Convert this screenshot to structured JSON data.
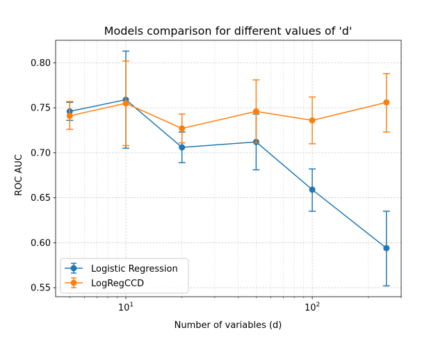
{
  "chart_data": {
    "type": "line",
    "title": "Models comparison for different values of 'd'",
    "xlabel": "Number of variables (d)",
    "ylabel": "ROC AUC",
    "x_scale": "log",
    "xlim": [
      4.2,
      300
    ],
    "ylim": [
      0.54,
      0.825
    ],
    "x": [
      5,
      10,
      20,
      50,
      100,
      250
    ],
    "x_major_ticks": [
      10,
      100
    ],
    "x_tick_labels": [
      {
        "base": "10",
        "exp": "1"
      },
      {
        "base": "10",
        "exp": "2"
      }
    ],
    "y_ticks": [
      0.55,
      0.6,
      0.65,
      0.7,
      0.75,
      0.8
    ],
    "y_tick_labels": [
      "0.55",
      "0.60",
      "0.65",
      "0.70",
      "0.75",
      "0.80"
    ],
    "grid": true,
    "grid_style": "dashed",
    "legend_position": "lower-left",
    "series": [
      {
        "name": "Logistic Regression",
        "color": "#1f77b4",
        "values": [
          0.746,
          0.759,
          0.706,
          0.712,
          0.659,
          0.594
        ],
        "err_low": [
          0.736,
          0.705,
          0.689,
          0.681,
          0.635,
          0.552
        ],
        "err_high": [
          0.756,
          0.813,
          0.723,
          0.743,
          0.682,
          0.635
        ]
      },
      {
        "name": "LogRegCCD",
        "color": "#ff7f0e",
        "values": [
          0.741,
          0.755,
          0.727,
          0.746,
          0.736,
          0.756
        ],
        "err_low": [
          0.726,
          0.708,
          0.711,
          0.711,
          0.71,
          0.723
        ],
        "err_high": [
          0.757,
          0.802,
          0.743,
          0.781,
          0.762,
          0.788
        ]
      }
    ]
  }
}
